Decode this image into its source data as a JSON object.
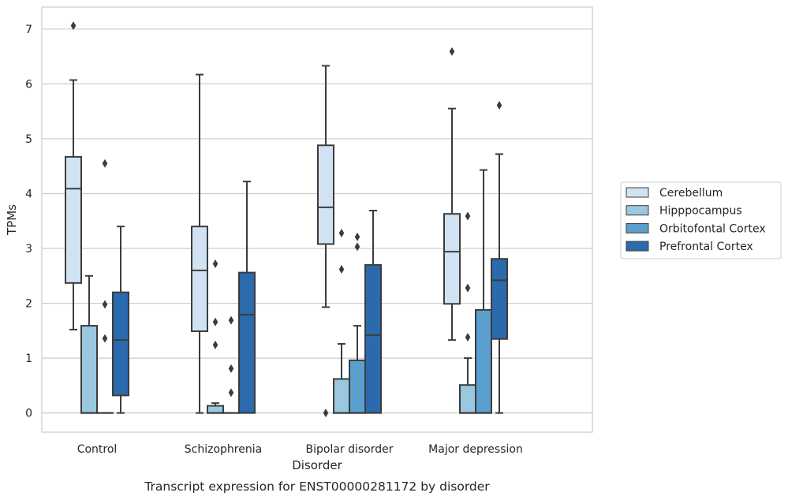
{
  "chart_data": {
    "type": "box",
    "caption": "Transcript expression for ENST00000281172 by disorder",
    "xlabel": "Disorder",
    "ylabel": "TPMs",
    "ylim": [
      -0.35,
      7.4
    ],
    "yticks": [
      0,
      1,
      2,
      3,
      4,
      5,
      6,
      7
    ],
    "grid": true,
    "legend_position": "right",
    "categories": [
      "Control",
      "Schizophrenia",
      "Bipolar disorder",
      "Major depression"
    ],
    "series": [
      {
        "name": "Cerebellum",
        "color": "#d1e2f2",
        "boxes": [
          {
            "whislo": 1.52,
            "q1": 2.37,
            "med": 4.09,
            "q3": 4.67,
            "whishi": 6.07,
            "fliers": [
              7.06
            ]
          },
          {
            "whislo": 0.0,
            "q1": 1.49,
            "med": 2.6,
            "q3": 3.4,
            "whishi": 6.17,
            "fliers": []
          },
          {
            "whislo": 1.93,
            "q1": 3.08,
            "med": 3.75,
            "q3": 4.88,
            "whishi": 6.33,
            "fliers": []
          },
          {
            "whislo": 1.33,
            "q1": 1.99,
            "med": 2.94,
            "q3": 3.63,
            "whishi": 5.55,
            "fliers": [
              6.59
            ]
          }
        ]
      },
      {
        "name": "Hipppocampus",
        "color": "#9ac8e0",
        "boxes": [
          {
            "whislo": 0.0,
            "q1": 0.0,
            "med": 0.0,
            "q3": 1.59,
            "whishi": 2.5,
            "fliers": []
          },
          {
            "whislo": 0.0,
            "q1": 0.0,
            "med": 0.0,
            "q3": 0.13,
            "whishi": 0.18,
            "fliers": [
              2.72,
              1.66,
              1.24
            ]
          },
          {
            "whislo": 0.0,
            "q1": 0.0,
            "med": 0.0,
            "q3": 0.62,
            "whishi": 1.26,
            "fliers": [
              3.28,
              2.62
            ]
          },
          {
            "whislo": 0.0,
            "q1": 0.0,
            "med": 0.0,
            "q3": 0.51,
            "whishi": 1.0,
            "fliers": [
              3.59,
              2.28,
              1.38
            ]
          }
        ]
      },
      {
        "name": "Orbitofontal Cortex",
        "color": "#5a9fcd",
        "boxes": [
          {
            "whislo": 0.0,
            "q1": 0.0,
            "med": 0.0,
            "q3": 0.0,
            "whishi": 0.0,
            "fliers": [
              4.55,
              1.98,
              1.36
            ]
          },
          {
            "whislo": 0.0,
            "q1": 0.0,
            "med": 0.0,
            "q3": 0.0,
            "whishi": 0.0,
            "fliers": [
              1.69,
              0.81,
              0.37
            ]
          },
          {
            "whislo": 0.0,
            "q1": 0.0,
            "med": 0.0,
            "q3": 0.96,
            "whishi": 1.59,
            "fliers": [
              3.21,
              3.03
            ]
          },
          {
            "whislo": 0.0,
            "q1": 0.0,
            "med": 0.0,
            "q3": 1.88,
            "whishi": 4.43,
            "fliers": []
          }
        ]
      },
      {
        "name": "Prefrontal Cortex",
        "color": "#2a6aad",
        "boxes": [
          {
            "whislo": 0.0,
            "q1": 0.32,
            "med": 1.33,
            "q3": 2.2,
            "whishi": 3.4,
            "fliers": []
          },
          {
            "whislo": 0.0,
            "q1": 0.0,
            "med": 1.79,
            "q3": 2.56,
            "whishi": 4.22,
            "fliers": []
          },
          {
            "whislo": 0.0,
            "q1": 0.0,
            "med": 1.42,
            "q3": 2.7,
            "whishi": 3.69,
            "fliers": []
          },
          {
            "whislo": 0.0,
            "q1": 1.35,
            "med": 2.42,
            "q3": 2.81,
            "whishi": 4.72,
            "fliers": [
              5.61
            ]
          }
        ]
      }
    ],
    "extra_fliers": [
      {
        "series": 0,
        "category": 2,
        "value": 0.0
      }
    ]
  }
}
